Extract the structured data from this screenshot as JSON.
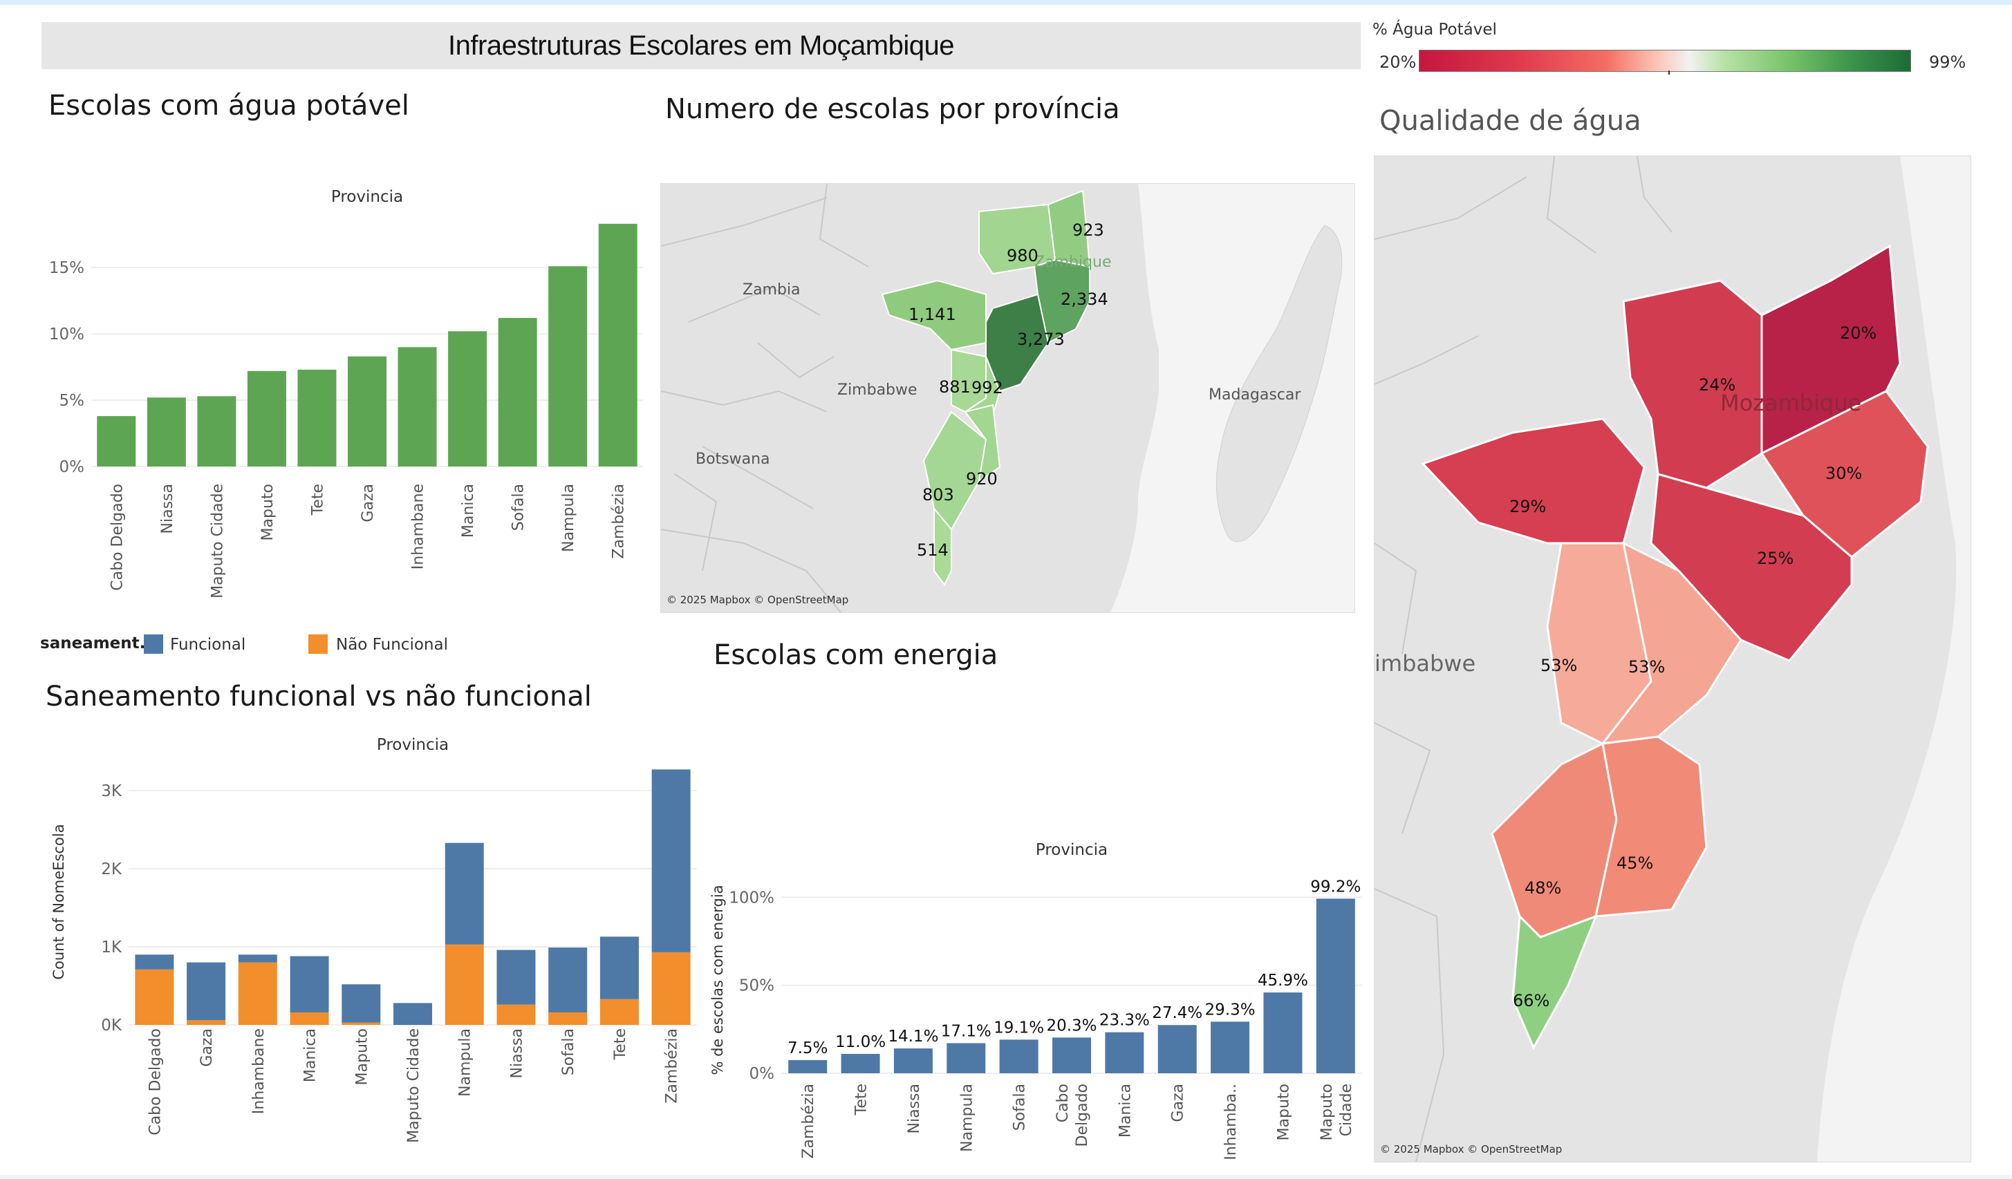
{
  "dashboard_title": "Infraestruturas Escolares em Moçambique",
  "colors": {
    "green_bar": "#5ea553",
    "blue": "#4e79a7",
    "orange": "#f28e2b",
    "water_low": "#c6163e",
    "water_mid": "#f0f0f0",
    "water_high": "#1d6b35"
  },
  "water_legend": {
    "title": "% Água Potável",
    "min_label": "20%",
    "max_label": "99%"
  },
  "sanitation_legend": {
    "title": "saneament..",
    "items": [
      {
        "label": "Funcional",
        "color": "#4e79a7"
      },
      {
        "label": "Não Funcional",
        "color": "#f28e2b"
      }
    ]
  },
  "sheets": {
    "water_bar": "Escolas com água potável",
    "school_map": "Numero de escolas por província",
    "water_map": "Qualidade de água",
    "sanitation": "Saneamento funcional vs não funcional",
    "energy": "Escolas com energia"
  },
  "map_credit": "© 2025 Mapbox © OpenStreetMap",
  "school_map": {
    "country_labels": [
      "Zambia",
      "Zimbabwe",
      "Botswana",
      "Madagascar",
      "Zambique"
    ],
    "values": [
      "980",
      "923",
      "2,334",
      "1,141",
      "3,273",
      "881",
      "992",
      "803",
      "920",
      "514"
    ]
  },
  "water_map": {
    "country_labels": [
      "Mozambique",
      "imbabwe"
    ],
    "values": [
      "20%",
      "24%",
      "30%",
      "29%",
      "25%",
      "53%",
      "53%",
      "48%",
      "45%",
      "66%"
    ]
  },
  "chart_data": [
    {
      "type": "bar",
      "title": "Escolas com água potável",
      "header": "Provincia",
      "categories": [
        "Cabo Delgado",
        "Niassa",
        "Maputo Cidade",
        "Maputo",
        "Tete",
        "Gaza",
        "Inhambane",
        "Manica",
        "Sofala",
        "Nampula",
        "Zambézia"
      ],
      "values": [
        3.8,
        5.2,
        5.3,
        7.2,
        7.3,
        8.3,
        9.0,
        10.2,
        11.2,
        15.1,
        18.3
      ],
      "ylim": [
        0,
        18.5
      ],
      "yticks": [
        0,
        5,
        10,
        15
      ],
      "ytick_labels": [
        "0%",
        "5%",
        "10%",
        "15%"
      ],
      "color": "#5ea553"
    },
    {
      "type": "bar",
      "stacked": true,
      "title": "Saneamento funcional vs não funcional",
      "header": "Provincia",
      "ylabel": "Count of NomeEscola",
      "categories": [
        "Cabo Delgado",
        "Gaza",
        "Inhambane",
        "Manica",
        "Maputo",
        "Maputo Cidade",
        "Nampula",
        "Niassa",
        "Sofala",
        "Tete",
        "Zambézia"
      ],
      "series": [
        {
          "name": "Não Funcional",
          "color": "#f28e2b",
          "values": [
            710,
            60,
            800,
            160,
            30,
            0,
            1030,
            260,
            160,
            330,
            930
          ]
        },
        {
          "name": "Funcional",
          "color": "#4e79a7",
          "values": [
            190,
            740,
            100,
            720,
            490,
            280,
            1300,
            700,
            830,
            800,
            2340
          ]
        }
      ],
      "ylim": [
        -150,
        3300
      ],
      "yticks": [
        0,
        1000,
        2000,
        3000
      ],
      "ytick_labels": [
        "0K",
        "1K",
        "2K",
        "3K"
      ]
    },
    {
      "type": "bar",
      "title": "Escolas com energia",
      "header": "Provincia",
      "ylabel": "% de escolas com energia",
      "categories": [
        "Zambézia",
        "Tete",
        "Niassa",
        "Nampula",
        "Sofala",
        "Cabo Delgado",
        "Manica",
        "Gaza",
        "Inhamba..",
        "Maputo",
        "Maputo Cidade"
      ],
      "values": [
        7.5,
        11.0,
        14.1,
        17.1,
        19.1,
        20.3,
        23.3,
        27.4,
        29.3,
        45.9,
        99.2
      ],
      "labels": [
        "7.5%",
        "11.0%",
        "14.1%",
        "17.1%",
        "19.1%",
        "20.3%",
        "23.3%",
        "27.4%",
        "29.3%",
        "45.9%",
        "99.2%"
      ],
      "ylim": [
        0,
        106
      ],
      "yticks": [
        0,
        50,
        100
      ],
      "ytick_labels": [
        "0%",
        "50%",
        "100%"
      ],
      "color": "#4e79a7"
    }
  ]
}
